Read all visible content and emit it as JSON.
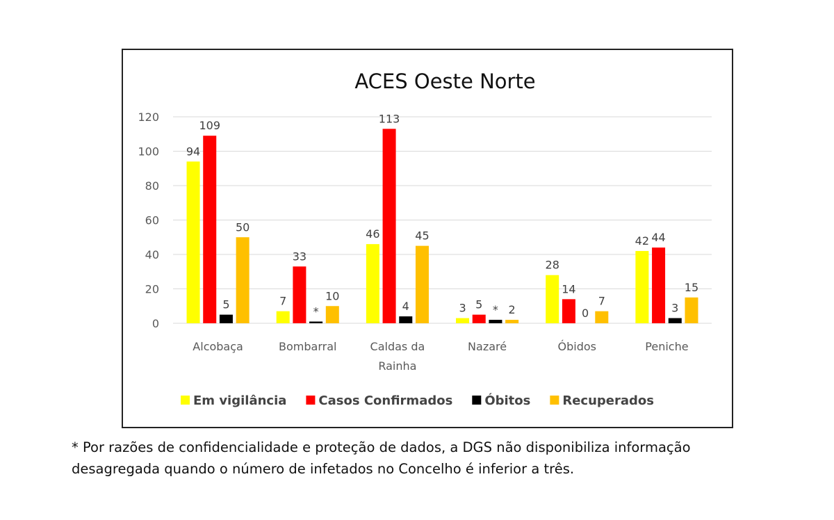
{
  "chart_data": {
    "type": "bar",
    "title": "ACES Oeste Norte",
    "categories": [
      [
        "Alcobaça"
      ],
      [
        "Bombarral"
      ],
      [
        "Caldas da",
        "Rainha"
      ],
      [
        "Nazaré"
      ],
      [
        "Óbidos"
      ],
      [
        "Peniche"
      ]
    ],
    "series": [
      {
        "name": "Em vigilância",
        "color": "#FFFF00",
        "values": [
          94,
          7,
          46,
          3,
          28,
          42
        ],
        "labels": [
          "94",
          "7",
          "46",
          "3",
          "28",
          "42"
        ]
      },
      {
        "name": "Casos Confirmados",
        "color": "#FF0000",
        "values": [
          109,
          33,
          113,
          5,
          14,
          44
        ],
        "labels": [
          "109",
          "33",
          "113",
          "5",
          "14",
          "44"
        ]
      },
      {
        "name": "Óbitos",
        "color": "#000000",
        "values": [
          5,
          1,
          4,
          2,
          0,
          3
        ],
        "labels": [
          "5",
          "*",
          "4",
          "*",
          "0",
          "3"
        ]
      },
      {
        "name": "Recuperados",
        "color": "#FFC000",
        "values": [
          50,
          10,
          45,
          2,
          7,
          15
        ],
        "labels": [
          "50",
          "10",
          "45",
          "2",
          "7",
          "15"
        ]
      }
    ],
    "yticks": [
      0,
      20,
      40,
      60,
      80,
      100,
      120
    ],
    "ylim": [
      0,
      120
    ],
    "grid": true,
    "legend_position": "bottom"
  },
  "footnote": {
    "line1": "* Por razões de confidencialidade e proteção de dados, a DGS não disponibiliza informação",
    "line2": "desagregada quando o número de infetados no Concelho é inferior a três."
  }
}
